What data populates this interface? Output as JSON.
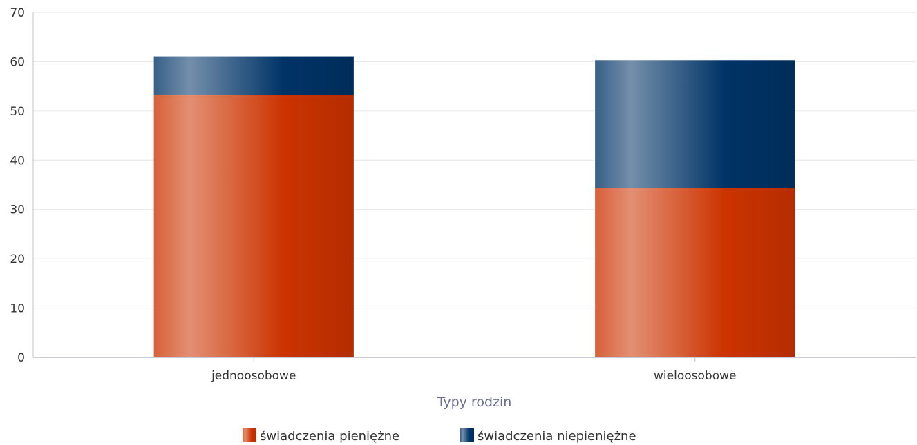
{
  "chart_data": {
    "type": "bar",
    "stacked": true,
    "categories": [
      "jednoosobowe",
      "wieloosobowe"
    ],
    "series": [
      {
        "name": "świadczenia pieniężne",
        "values": [
          53.3,
          34.3
        ],
        "color": "#cc3300"
      },
      {
        "name": "świadczenia niepieniężne",
        "values": [
          7.8,
          26.0
        ],
        "color": "#003366"
      }
    ],
    "title": "",
    "xlabel": "Typy rodzin",
    "ylabel": "",
    "ylim": [
      0,
      70
    ],
    "yticks": [
      0,
      10,
      20,
      30,
      40,
      50,
      60,
      70
    ],
    "grid": true,
    "legend": "bottom-center"
  }
}
